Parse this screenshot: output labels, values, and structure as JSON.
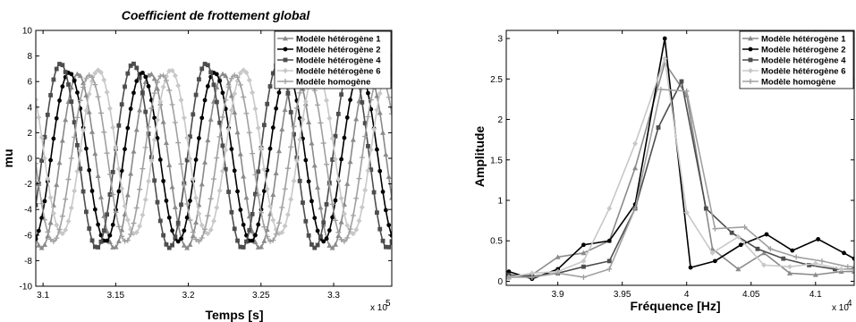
{
  "chart_data": [
    {
      "type": "line",
      "title": "Coefficient de frottement global",
      "xlabel": "Temps [s]",
      "ylabel": "mu",
      "x_exponent_label": "x 10",
      "x_exponent_power": "5",
      "xlim": [
        3.095,
        3.34
      ],
      "ylim": [
        -10,
        10
      ],
      "xticks": [
        3.1,
        3.15,
        3.2,
        3.25,
        3.3
      ],
      "xtick_labels": [
        "3.1",
        "3.15",
        "3.2",
        "3.25",
        "3.3"
      ],
      "yticks": [
        -10,
        -8,
        -6,
        -4,
        -2,
        0,
        2,
        4,
        6,
        8,
        10
      ],
      "ytick_labels": [
        "-10",
        "-8",
        "-6",
        "-4",
        "-2",
        "0",
        "2",
        "4",
        "6",
        "8",
        "10"
      ],
      "grid": false,
      "legend_position": "top-right",
      "series": [
        {
          "name": "Modèle hétérogène 1",
          "marker": "triangle",
          "color": "#8a8a8a",
          "amplitude": 6.8,
          "offset": -0.2,
          "period": 0.05,
          "phase_x": 3.124
        },
        {
          "name": "Modèle hétérogène 2",
          "marker": "circle",
          "color": "#000000",
          "amplitude": 6.6,
          "offset": 0.1,
          "period": 0.05,
          "phase_x": 3.118
        },
        {
          "name": "Modèle hétérogène 4",
          "marker": "square",
          "color": "#4d4d4d",
          "amplitude": 7.2,
          "offset": 0.2,
          "period": 0.05,
          "phase_x": 3.112
        },
        {
          "name": "Modèle hétérogène 6",
          "marker": "diamond",
          "color": "#c8c8c8",
          "amplitude": 6.4,
          "offset": 0.5,
          "period": 0.05,
          "phase_x": 3.138
        },
        {
          "name": "Modèle homogène",
          "marker": "plus",
          "color": "#a0a0a0",
          "amplitude": 6.5,
          "offset": 0.0,
          "period": 0.05,
          "phase_x": 3.132
        }
      ]
    },
    {
      "type": "line",
      "title": "",
      "xlabel": "Fréquence [Hz]",
      "ylabel": "Amplitude",
      "x_exponent_label": "x 10",
      "x_exponent_power": "4",
      "xlim": [
        3.86,
        4.13
      ],
      "ylim": [
        -0.05,
        3.1
      ],
      "xticks": [
        3.9,
        3.95,
        4.0,
        4.05,
        4.1
      ],
      "xtick_labels": [
        "3.9",
        "3.95",
        "4",
        "4.05",
        "4.1"
      ],
      "yticks": [
        0,
        0.5,
        1,
        1.5,
        2,
        2.5,
        3
      ],
      "ytick_labels": [
        "0",
        "0.5",
        "1",
        "1.5",
        "2",
        "2.5",
        "3"
      ],
      "grid": false,
      "legend_position": "top-right",
      "series": [
        {
          "name": "Modèle hétérogène 1",
          "marker": "triangle",
          "color": "#8a8a8a",
          "x": [
            3.862,
            3.88,
            3.9,
            3.92,
            3.94,
            3.96,
            3.983,
            4.0,
            4.02,
            4.04,
            4.06,
            4.08,
            4.1,
            4.12,
            4.13
          ],
          "y": [
            0.05,
            0.08,
            0.3,
            0.35,
            0.5,
            1.4,
            2.7,
            2.3,
            0.4,
            0.15,
            0.35,
            0.1,
            0.08,
            0.12,
            0.12
          ]
        },
        {
          "name": "Modèle hétérogène 2",
          "marker": "circle",
          "color": "#000000",
          "x": [
            3.862,
            3.88,
            3.9,
            3.92,
            3.94,
            3.96,
            3.983,
            4.003,
            4.022,
            4.042,
            4.062,
            4.082,
            4.102,
            4.122,
            4.13
          ],
          "y": [
            0.12,
            0.03,
            0.15,
            0.45,
            0.5,
            0.95,
            3.0,
            0.17,
            0.25,
            0.45,
            0.58,
            0.38,
            0.52,
            0.35,
            0.28
          ]
        },
        {
          "name": "Modèle hétérogène 4",
          "marker": "square",
          "color": "#4d4d4d",
          "x": [
            3.862,
            3.88,
            3.9,
            3.92,
            3.94,
            3.96,
            3.978,
            3.996,
            4.015,
            4.035,
            4.055,
            4.075,
            4.095,
            4.115,
            4.13
          ],
          "y": [
            0.08,
            0.06,
            0.1,
            0.18,
            0.25,
            0.9,
            1.9,
            2.47,
            0.9,
            0.6,
            0.4,
            0.28,
            0.2,
            0.15,
            0.15
          ]
        },
        {
          "name": "Modèle hétérogène 6",
          "marker": "diamond",
          "color": "#c8c8c8",
          "x": [
            3.862,
            3.88,
            3.9,
            3.92,
            3.94,
            3.96,
            3.983,
            4.0,
            4.02,
            4.04,
            4.06,
            4.08,
            4.1,
            4.12,
            4.13
          ],
          "y": [
            0.05,
            0.1,
            0.12,
            0.25,
            0.9,
            1.7,
            2.75,
            0.85,
            0.35,
            0.55,
            0.2,
            0.18,
            0.22,
            0.15,
            0.14
          ]
        },
        {
          "name": "Modèle homogène",
          "marker": "plus",
          "color": "#a0a0a0",
          "x": [
            3.862,
            3.88,
            3.9,
            3.92,
            3.94,
            3.96,
            3.98,
            4.0,
            4.022,
            4.045,
            4.065,
            4.085,
            4.105,
            4.125,
            4.13
          ],
          "y": [
            0.05,
            0.05,
            0.1,
            0.05,
            0.15,
            0.9,
            2.37,
            2.35,
            0.65,
            0.67,
            0.4,
            0.3,
            0.25,
            0.18,
            0.18
          ]
        }
      ]
    }
  ]
}
